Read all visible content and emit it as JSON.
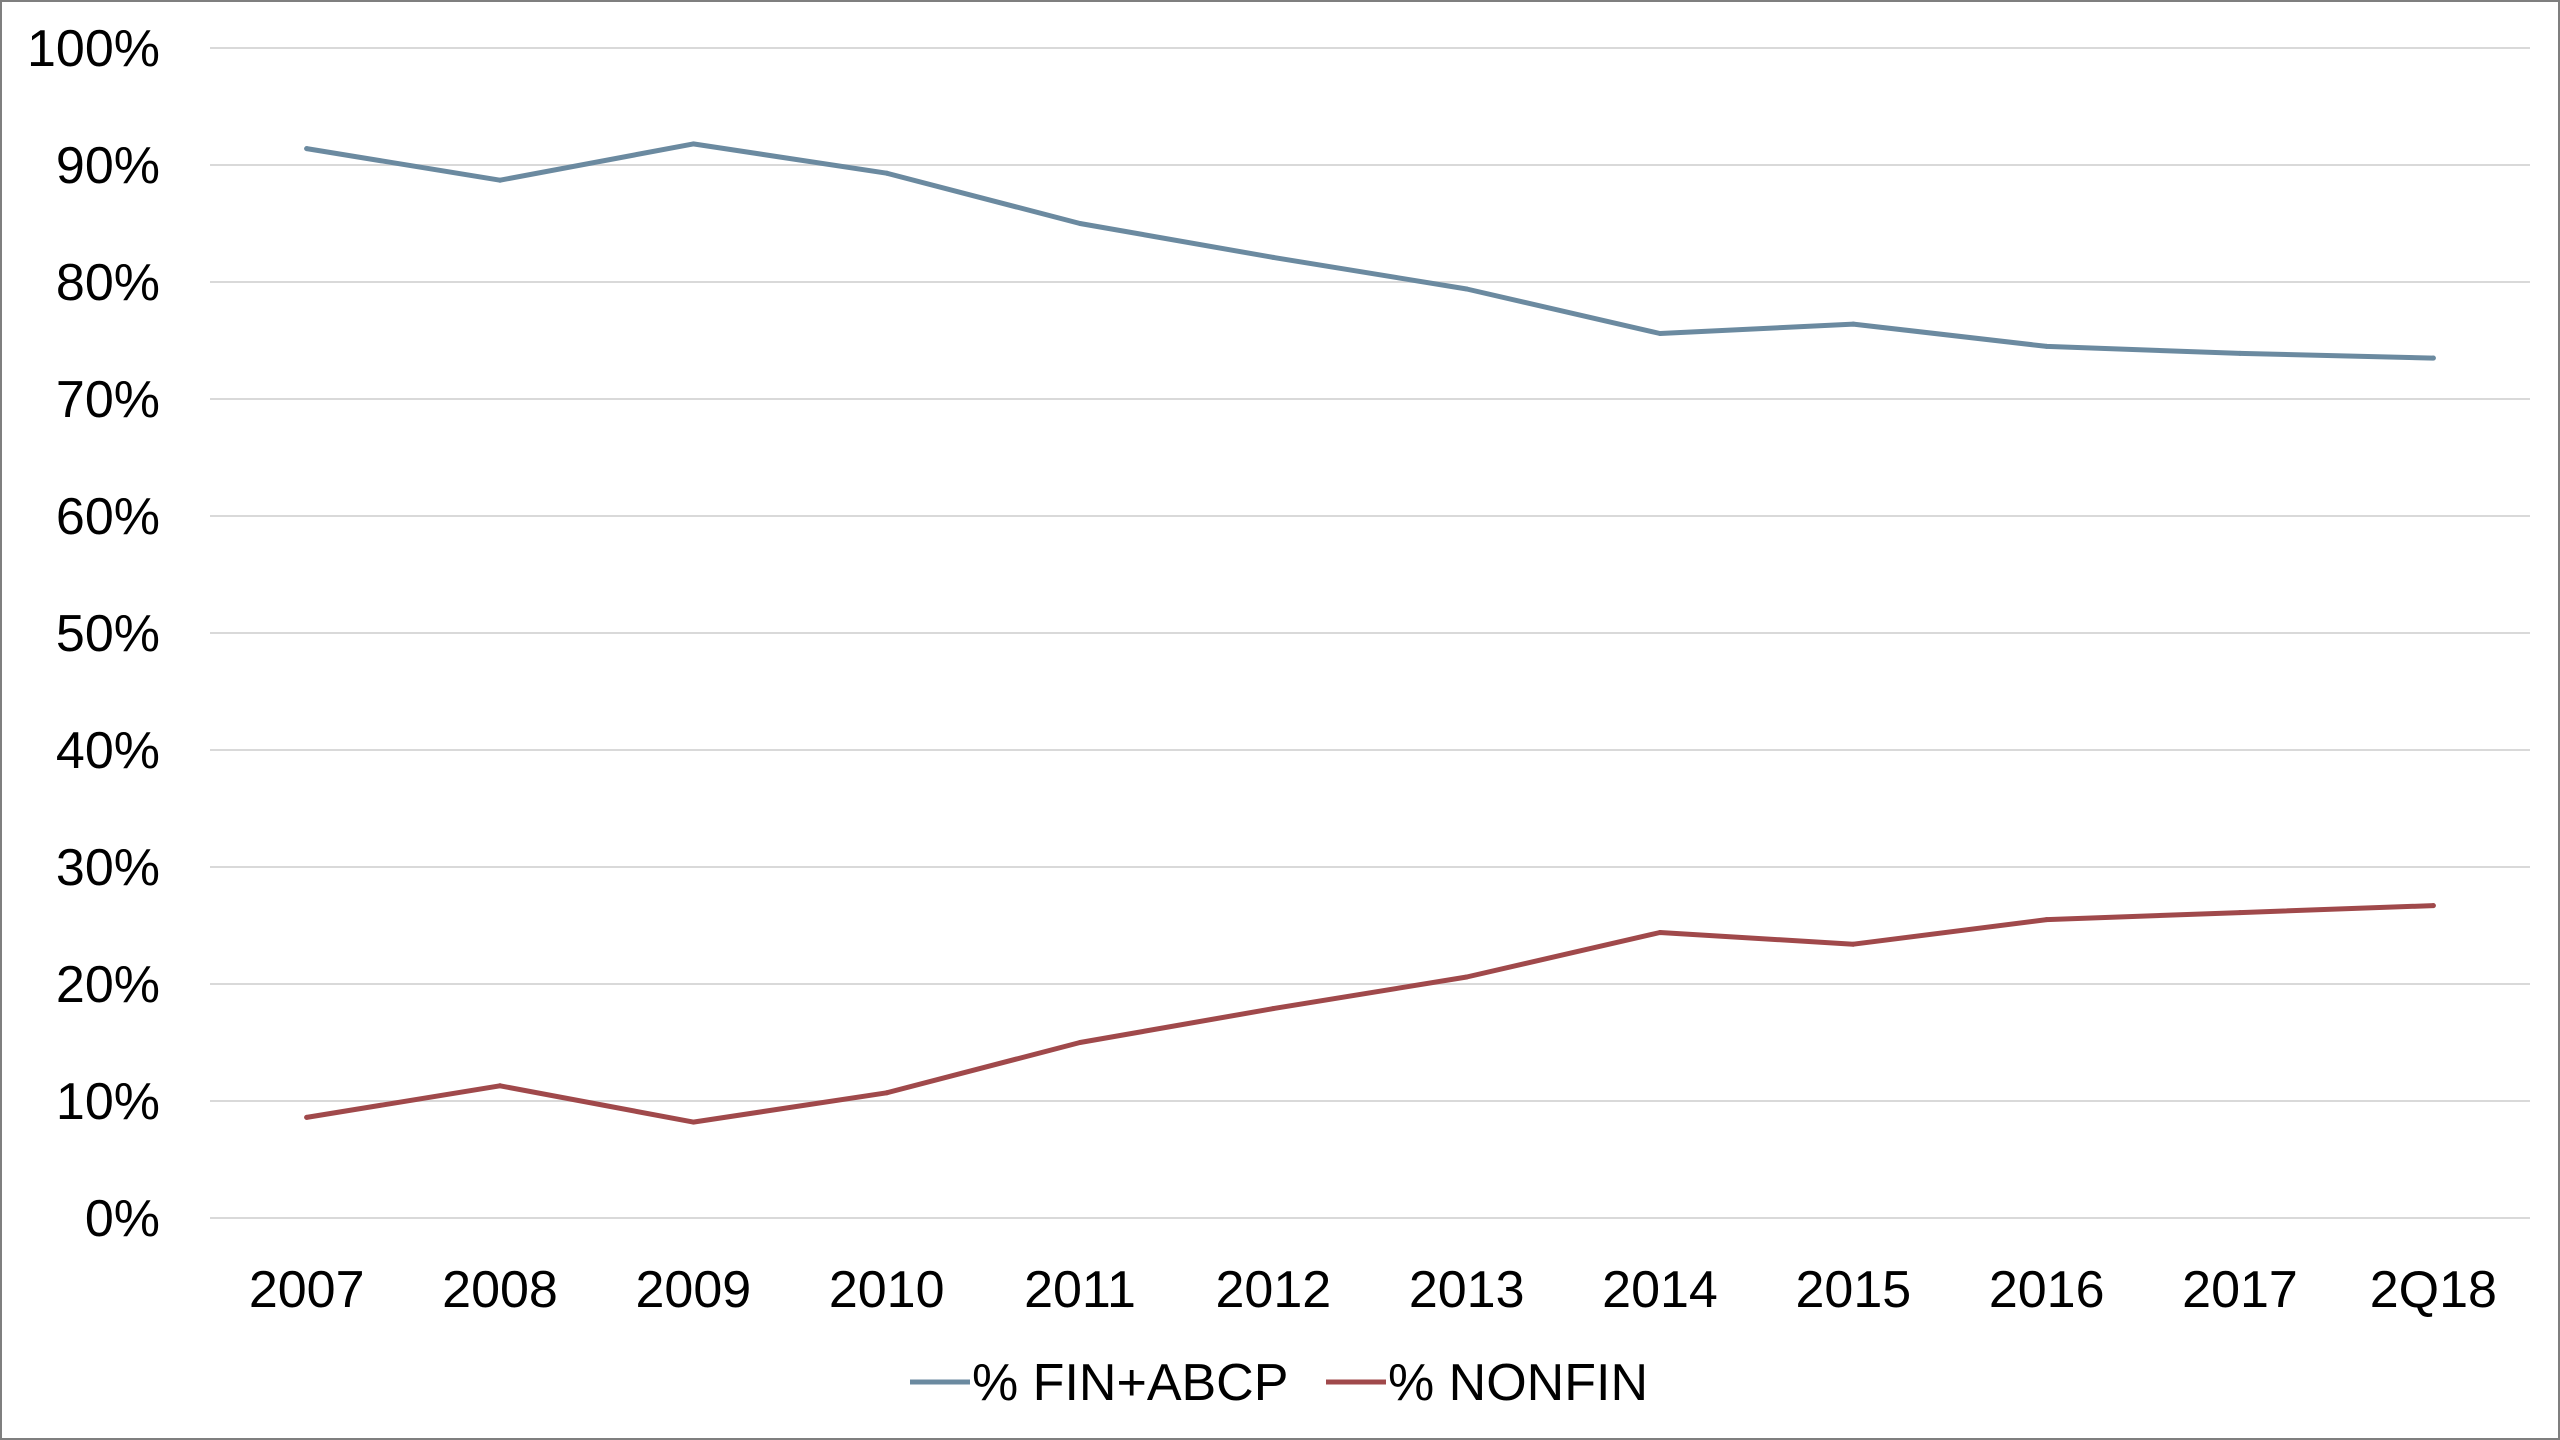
{
  "chart_data": {
    "type": "line",
    "title": "",
    "xlabel": "",
    "ylabel": "",
    "categories": [
      "2007",
      "2008",
      "2009",
      "2010",
      "2011",
      "2012",
      "2013",
      "2014",
      "2015",
      "2016",
      "2017",
      "2Q18"
    ],
    "y_tick_labels": [
      "0%",
      "10%",
      "20%",
      "30%",
      "40%",
      "50%",
      "60%",
      "70%",
      "80%",
      "90%",
      "100%"
    ],
    "ylim": [
      0,
      100
    ],
    "grid": "horizontal",
    "legend_position": "bottom",
    "series": [
      {
        "name": "% FIN+ABCP",
        "color": "#6b8aa0",
        "values": [
          91.4,
          88.7,
          91.8,
          89.3,
          85.0,
          82.1,
          79.4,
          75.6,
          76.4,
          74.5,
          73.9,
          73.5
        ]
      },
      {
        "name": "% NONFIN",
        "color": "#a0494b",
        "values": [
          8.6,
          11.3,
          8.2,
          10.7,
          15.0,
          17.9,
          20.6,
          24.4,
          23.4,
          25.5,
          26.1,
          26.7
        ]
      }
    ]
  }
}
